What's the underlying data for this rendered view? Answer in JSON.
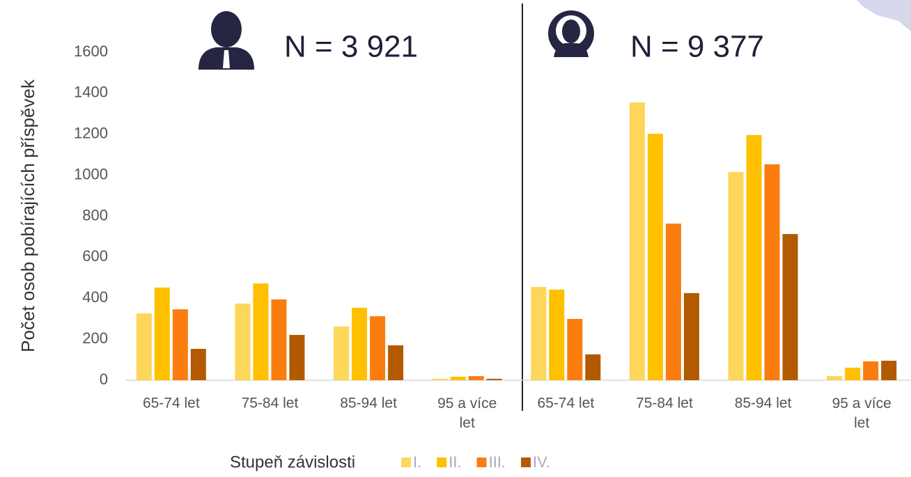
{
  "chart_data": {
    "type": "bar",
    "ylabel": "Počet osob pobírajících příspěvek",
    "annotations": [
      "N = 3 921",
      "N = 9 377"
    ],
    "categories": [
      "65-74 let",
      "75-84 let",
      "85-94 let",
      "95 a více let",
      "65-74 let",
      "75-84 let",
      "85-94 let",
      "95 a více let"
    ],
    "legend_title": "Stupeň závislosti",
    "series": [
      {
        "name": "I.",
        "color": "#fdd65a",
        "values": [
          326,
          374,
          262,
          7,
          455,
          1355,
          1016,
          20
        ]
      },
      {
        "name": "II.",
        "color": "#ffc000",
        "values": [
          452,
          472,
          353,
          17,
          442,
          1202,
          1196,
          61
        ]
      },
      {
        "name": "III.",
        "color": "#fb7d0f",
        "values": [
          346,
          394,
          312,
          20,
          299,
          764,
          1053,
          92
        ]
      },
      {
        "name": "IV.",
        "color": "#b35a00",
        "values": [
          153,
          221,
          170,
          7,
          126,
          425,
          713,
          95
        ]
      }
    ],
    "ylim": [
      0,
      1600
    ],
    "yticks": [
      0,
      200,
      400,
      600,
      800,
      1000,
      1200,
      1400,
      1600
    ]
  }
}
